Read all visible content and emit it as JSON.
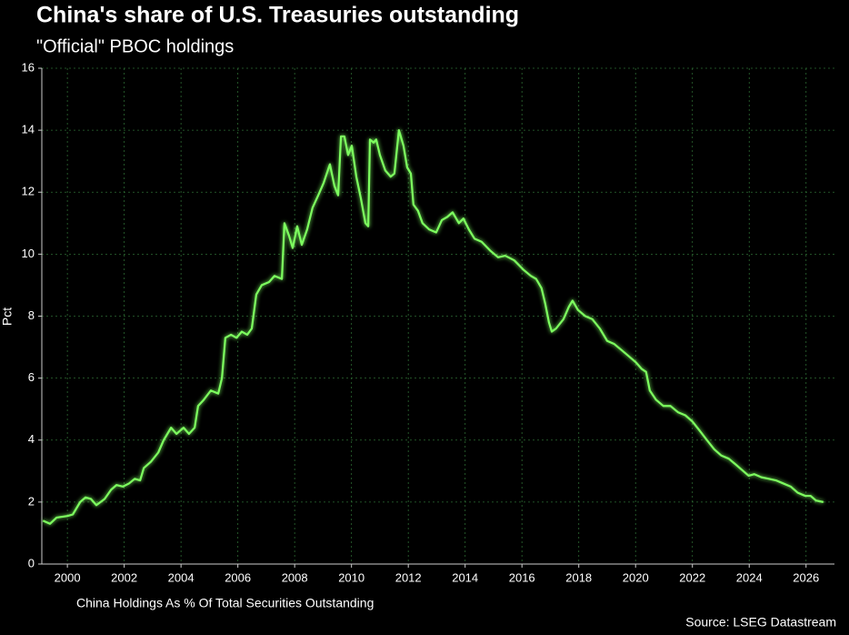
{
  "chart_data": {
    "type": "line",
    "title": "China's share of U.S. Treasuries outstanding",
    "subtitle": "\"Official\" PBOC holdings",
    "ylabel": "Pct",
    "source": "Source: LSEG Datastream",
    "grid": true,
    "legend": "bottom-left",
    "xlim": [
      1999.1,
      2027
    ],
    "ylim": [
      0,
      16
    ],
    "xticks": [
      2000,
      2002,
      2004,
      2006,
      2008,
      2010,
      2012,
      2014,
      2016,
      2018,
      2020,
      2022,
      2024,
      2026
    ],
    "yticks": [
      0,
      2,
      4,
      6,
      8,
      10,
      12,
      14,
      16
    ],
    "x": [
      1999.14,
      1999.39,
      1999.62,
      2000.0,
      2000.19,
      2000.45,
      2000.64,
      2000.83,
      2001.02,
      2001.31,
      2001.54,
      2001.73,
      2001.95,
      2002.17,
      2002.37,
      2002.56,
      2002.69,
      2002.94,
      2003.2,
      2003.39,
      2003.65,
      2003.84,
      2004.09,
      2004.28,
      2004.48,
      2004.6,
      2004.8,
      2005.05,
      2005.31,
      2005.44,
      2005.56,
      2005.76,
      2005.95,
      2006.14,
      2006.33,
      2006.49,
      2006.65,
      2006.84,
      2007.1,
      2007.29,
      2007.55,
      2007.64,
      2007.8,
      2007.93,
      2008.09,
      2008.25,
      2008.44,
      2008.63,
      2008.83,
      2009.02,
      2009.24,
      2009.4,
      2009.53,
      2009.63,
      2009.75,
      2009.88,
      2010.01,
      2010.17,
      2010.33,
      2010.49,
      2010.59,
      2010.65,
      2010.78,
      2010.87,
      2011.0,
      2011.19,
      2011.38,
      2011.51,
      2011.67,
      2011.83,
      2011.96,
      2012.09,
      2012.18,
      2012.34,
      2012.5,
      2012.73,
      2012.98,
      2013.18,
      2013.37,
      2013.56,
      2013.78,
      2013.94,
      2014.13,
      2014.33,
      2014.58,
      2014.9,
      2015.16,
      2015.41,
      2015.73,
      2016.05,
      2016.31,
      2016.5,
      2016.69,
      2016.82,
      2016.95,
      2017.05,
      2017.2,
      2017.46,
      2017.65,
      2017.78,
      2017.97,
      2018.23,
      2018.48,
      2018.74,
      2019.0,
      2019.25,
      2019.51,
      2019.77,
      2020.02,
      2020.21,
      2020.37,
      2020.5,
      2020.72,
      2020.98,
      2021.23,
      2021.49,
      2021.75,
      2022.0,
      2022.26,
      2022.51,
      2022.77,
      2023.02,
      2023.28,
      2023.54,
      2023.79,
      2023.98,
      2024.18,
      2024.43,
      2024.69,
      2024.94,
      2025.2,
      2025.46,
      2025.71,
      2025.97,
      2026.16,
      2026.35,
      2026.61
    ],
    "series": [
      {
        "name": "China Holdings As % Of Total Securities Outstanding",
        "color": "#7dff5e",
        "values": [
          1.4,
          1.3,
          1.5,
          1.55,
          1.6,
          2.0,
          2.15,
          2.1,
          1.9,
          2.1,
          2.4,
          2.55,
          2.5,
          2.6,
          2.75,
          2.7,
          3.1,
          3.3,
          3.6,
          4.0,
          4.4,
          4.2,
          4.4,
          4.2,
          4.4,
          5.1,
          5.3,
          5.6,
          5.5,
          6.0,
          7.3,
          7.4,
          7.3,
          7.5,
          7.4,
          7.6,
          8.7,
          9.0,
          9.1,
          9.3,
          9.2,
          11.0,
          10.6,
          10.2,
          10.9,
          10.3,
          10.8,
          11.5,
          11.9,
          12.3,
          12.9,
          12.2,
          11.9,
          13.8,
          13.8,
          13.2,
          13.5,
          12.5,
          11.8,
          11.0,
          10.9,
          13.7,
          13.6,
          13.7,
          13.2,
          12.7,
          12.5,
          12.6,
          14.0,
          13.5,
          12.8,
          12.6,
          11.6,
          11.4,
          11.0,
          10.8,
          10.7,
          11.1,
          11.2,
          11.35,
          11.0,
          11.15,
          10.8,
          10.5,
          10.4,
          10.1,
          9.9,
          9.95,
          9.8,
          9.5,
          9.3,
          9.2,
          8.9,
          8.4,
          7.8,
          7.5,
          7.6,
          7.9,
          8.3,
          8.5,
          8.2,
          8.0,
          7.9,
          7.6,
          7.2,
          7.1,
          6.9,
          6.7,
          6.5,
          6.3,
          6.2,
          5.6,
          5.3,
          5.1,
          5.1,
          4.9,
          4.8,
          4.6,
          4.3,
          4.0,
          3.7,
          3.5,
          3.4,
          3.2,
          3.0,
          2.85,
          2.9,
          2.8,
          2.75,
          2.7,
          2.6,
          2.5,
          2.3,
          2.2,
          2.2,
          2.05,
          2.0
        ]
      }
    ]
  }
}
